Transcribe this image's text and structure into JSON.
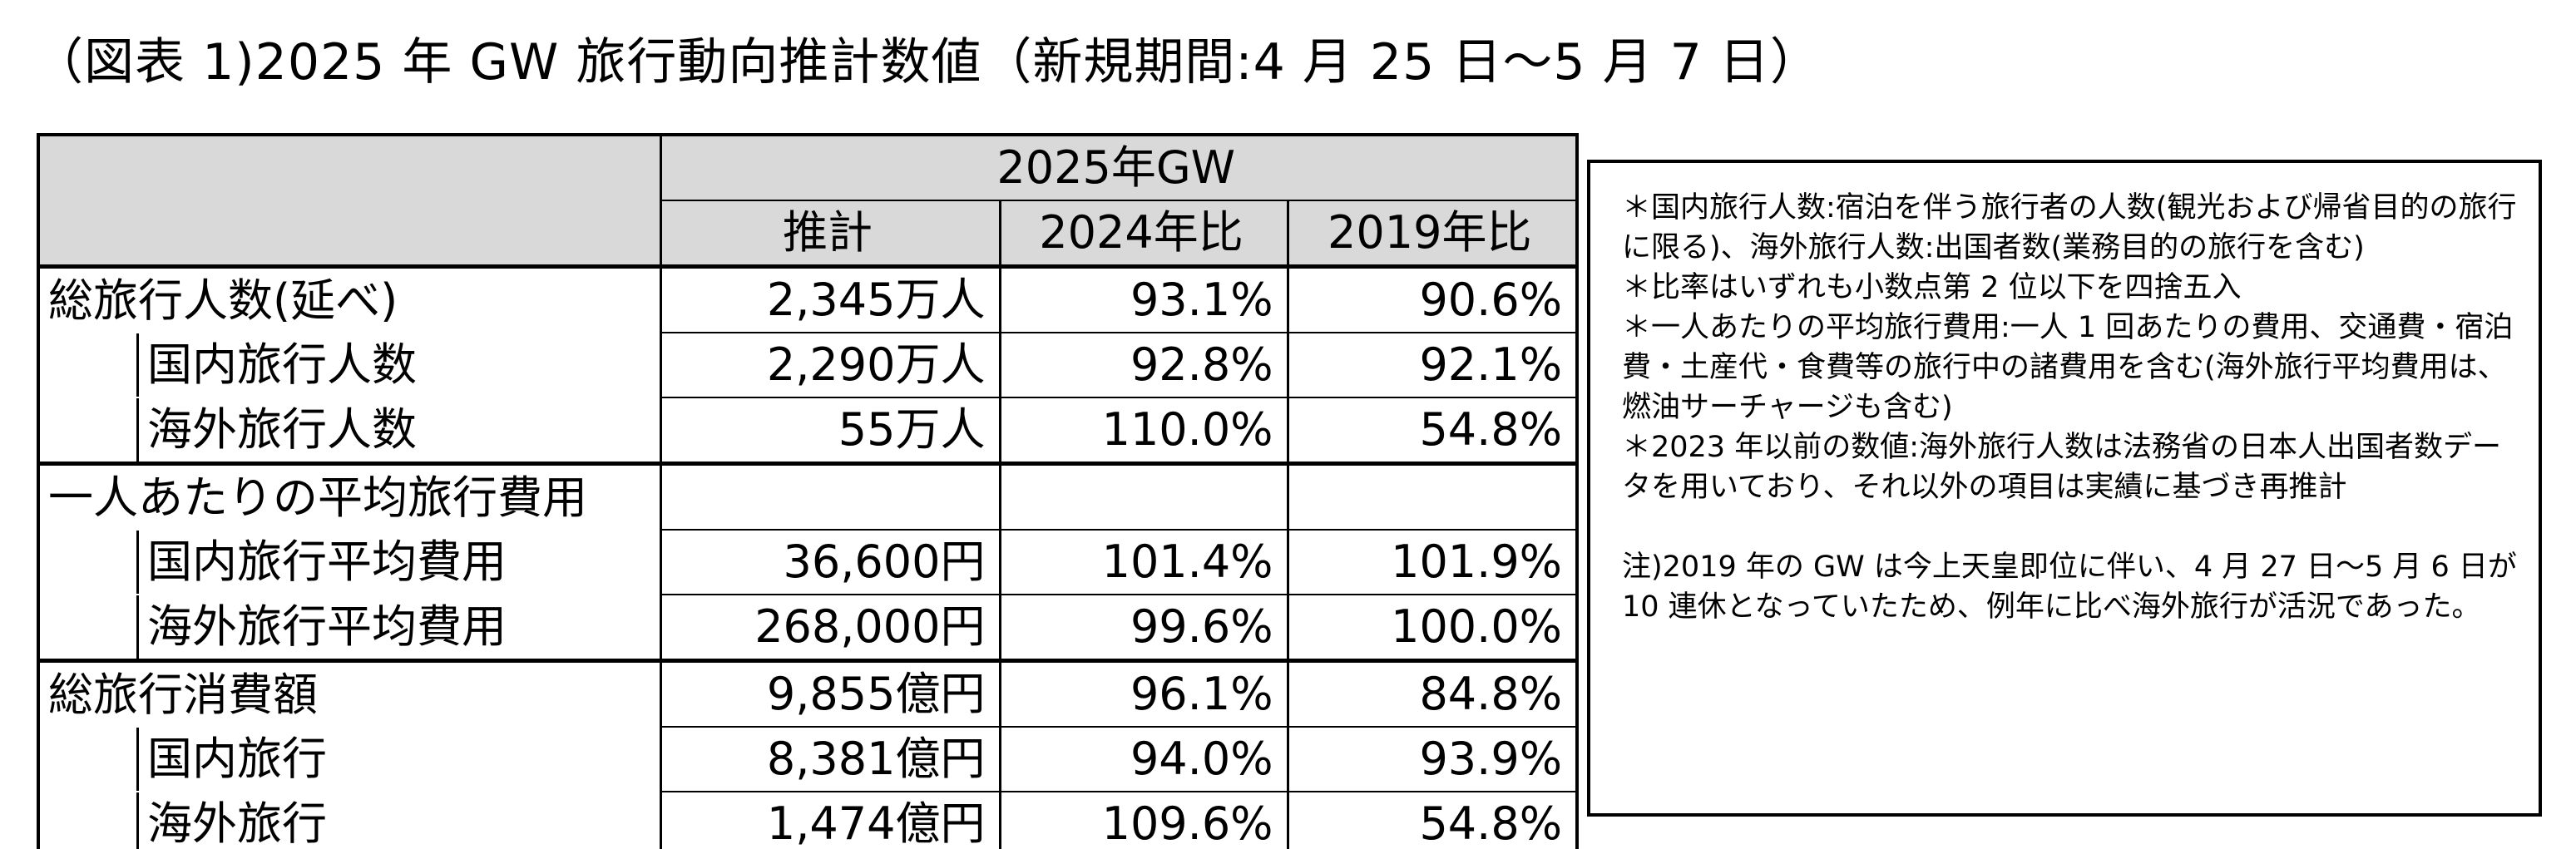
{
  "title": "（図表 1)2025 年 GW 旅行動向推計数値（新規期間:4 月 25 日～5 月 7 日）",
  "table": {
    "header_group": "2025年GW",
    "header_cols": [
      "推計",
      "2024年比",
      "2019年比"
    ],
    "rows": [
      {
        "label": "総旅行人数(延べ)",
        "indent": false,
        "values": [
          "2,345万人",
          "93.1%",
          "90.6%"
        ]
      },
      {
        "label": "国内旅行人数",
        "indent": true,
        "values": [
          "2,290万人",
          "92.8%",
          "92.1%"
        ]
      },
      {
        "label": "海外旅行人数",
        "indent": true,
        "values": [
          "55万人",
          "110.0%",
          "54.8%"
        ]
      },
      {
        "label": "一人あたりの平均旅行費用",
        "indent": false,
        "values": [
          "",
          "",
          ""
        ]
      },
      {
        "label": "国内旅行平均費用",
        "indent": true,
        "values": [
          "36,600円",
          "101.4%",
          "101.9%"
        ]
      },
      {
        "label": "海外旅行平均費用",
        "indent": true,
        "values": [
          "268,000円",
          "99.6%",
          "100.0%"
        ]
      },
      {
        "label": "総旅行消費額",
        "indent": false,
        "values": [
          "9,855億円",
          "96.1%",
          "84.8%"
        ]
      },
      {
        "label": "国内旅行",
        "indent": true,
        "values": [
          "8,381億円",
          "94.0%",
          "93.9%"
        ]
      },
      {
        "label": "海外旅行",
        "indent": true,
        "values": [
          "1,474億円",
          "109.6%",
          "54.8%"
        ]
      }
    ]
  },
  "notes": {
    "n1": "＊国内旅行人数:宿泊を伴う旅行者の人数(観光および帰省目的の旅行に限る)、海外旅行人数:出国者数(業務目的の旅行を含む)",
    "n2": "＊比率はいずれも小数点第 2 位以下を四捨五入",
    "n3": "＊一人あたりの平均旅行費用:一人 1 回あたりの費用、交通費・宿泊費・土産代・食費等の旅行中の諸費用を含む(海外旅行平均費用は、燃油サーチャージも含む)",
    "n4": "＊2023 年以前の数値:海外旅行人数は法務省の日本人出国者数データを用いており、それ以外の項目は実績に基づき再推計",
    "n5": "注)2019 年の GW は今上天皇即位に伴い、4 月 27 日～5 月 6 日が 10 連休となっていたため、例年に比べ海外旅行が活況であった。"
  }
}
